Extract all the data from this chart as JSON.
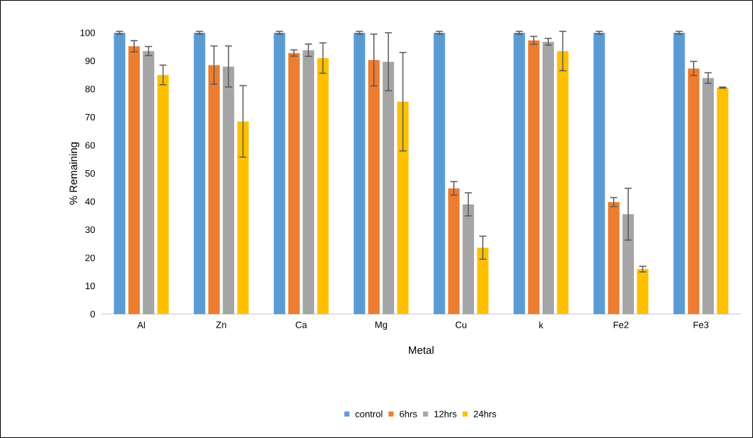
{
  "chart_data": {
    "type": "bar",
    "xlabel": "Metal",
    "ylabel": "% Remaining",
    "categories": [
      "Al",
      "Zn",
      "Ca",
      "Mg",
      "Cu",
      "k",
      "Fe2",
      "Fe3"
    ],
    "series": [
      {
        "name": "control",
        "color": "#5b9bd5",
        "values": [
          100,
          100,
          100,
          100,
          100,
          100,
          100,
          100
        ],
        "errors": [
          0.5,
          0.5,
          0.5,
          0.5,
          0.5,
          0.5,
          0.5,
          0.5
        ]
      },
      {
        "name": "6hrs",
        "color": "#ed7d31",
        "values": [
          95.2,
          88.5,
          92.8,
          90.3,
          44.7,
          97.3,
          39.8,
          87.3
        ],
        "errors": [
          2,
          6.8,
          1.1,
          9.2,
          2.4,
          1.4,
          1.6,
          2.5
        ]
      },
      {
        "name": "12hrs",
        "color": "#a5a5a5",
        "values": [
          93.5,
          88,
          93.8,
          89.7,
          39,
          96.8,
          35.5,
          83.9
        ],
        "errors": [
          1.6,
          7.3,
          2.2,
          10.3,
          4.1,
          1.2,
          9.2,
          1.9
        ]
      },
      {
        "name": "24hrs",
        "color": "#ffc000",
        "values": [
          85,
          68.5,
          91,
          75.5,
          23.6,
          93.5,
          16,
          80.5
        ],
        "errors": [
          3.5,
          12.7,
          5.4,
          17.5,
          4.1,
          7,
          1,
          0.2
        ]
      }
    ],
    "ylim": [
      0,
      100
    ],
    "yticks": [
      0,
      10,
      20,
      30,
      40,
      50,
      60,
      70,
      80,
      90,
      100
    ],
    "legend": "bottom"
  }
}
